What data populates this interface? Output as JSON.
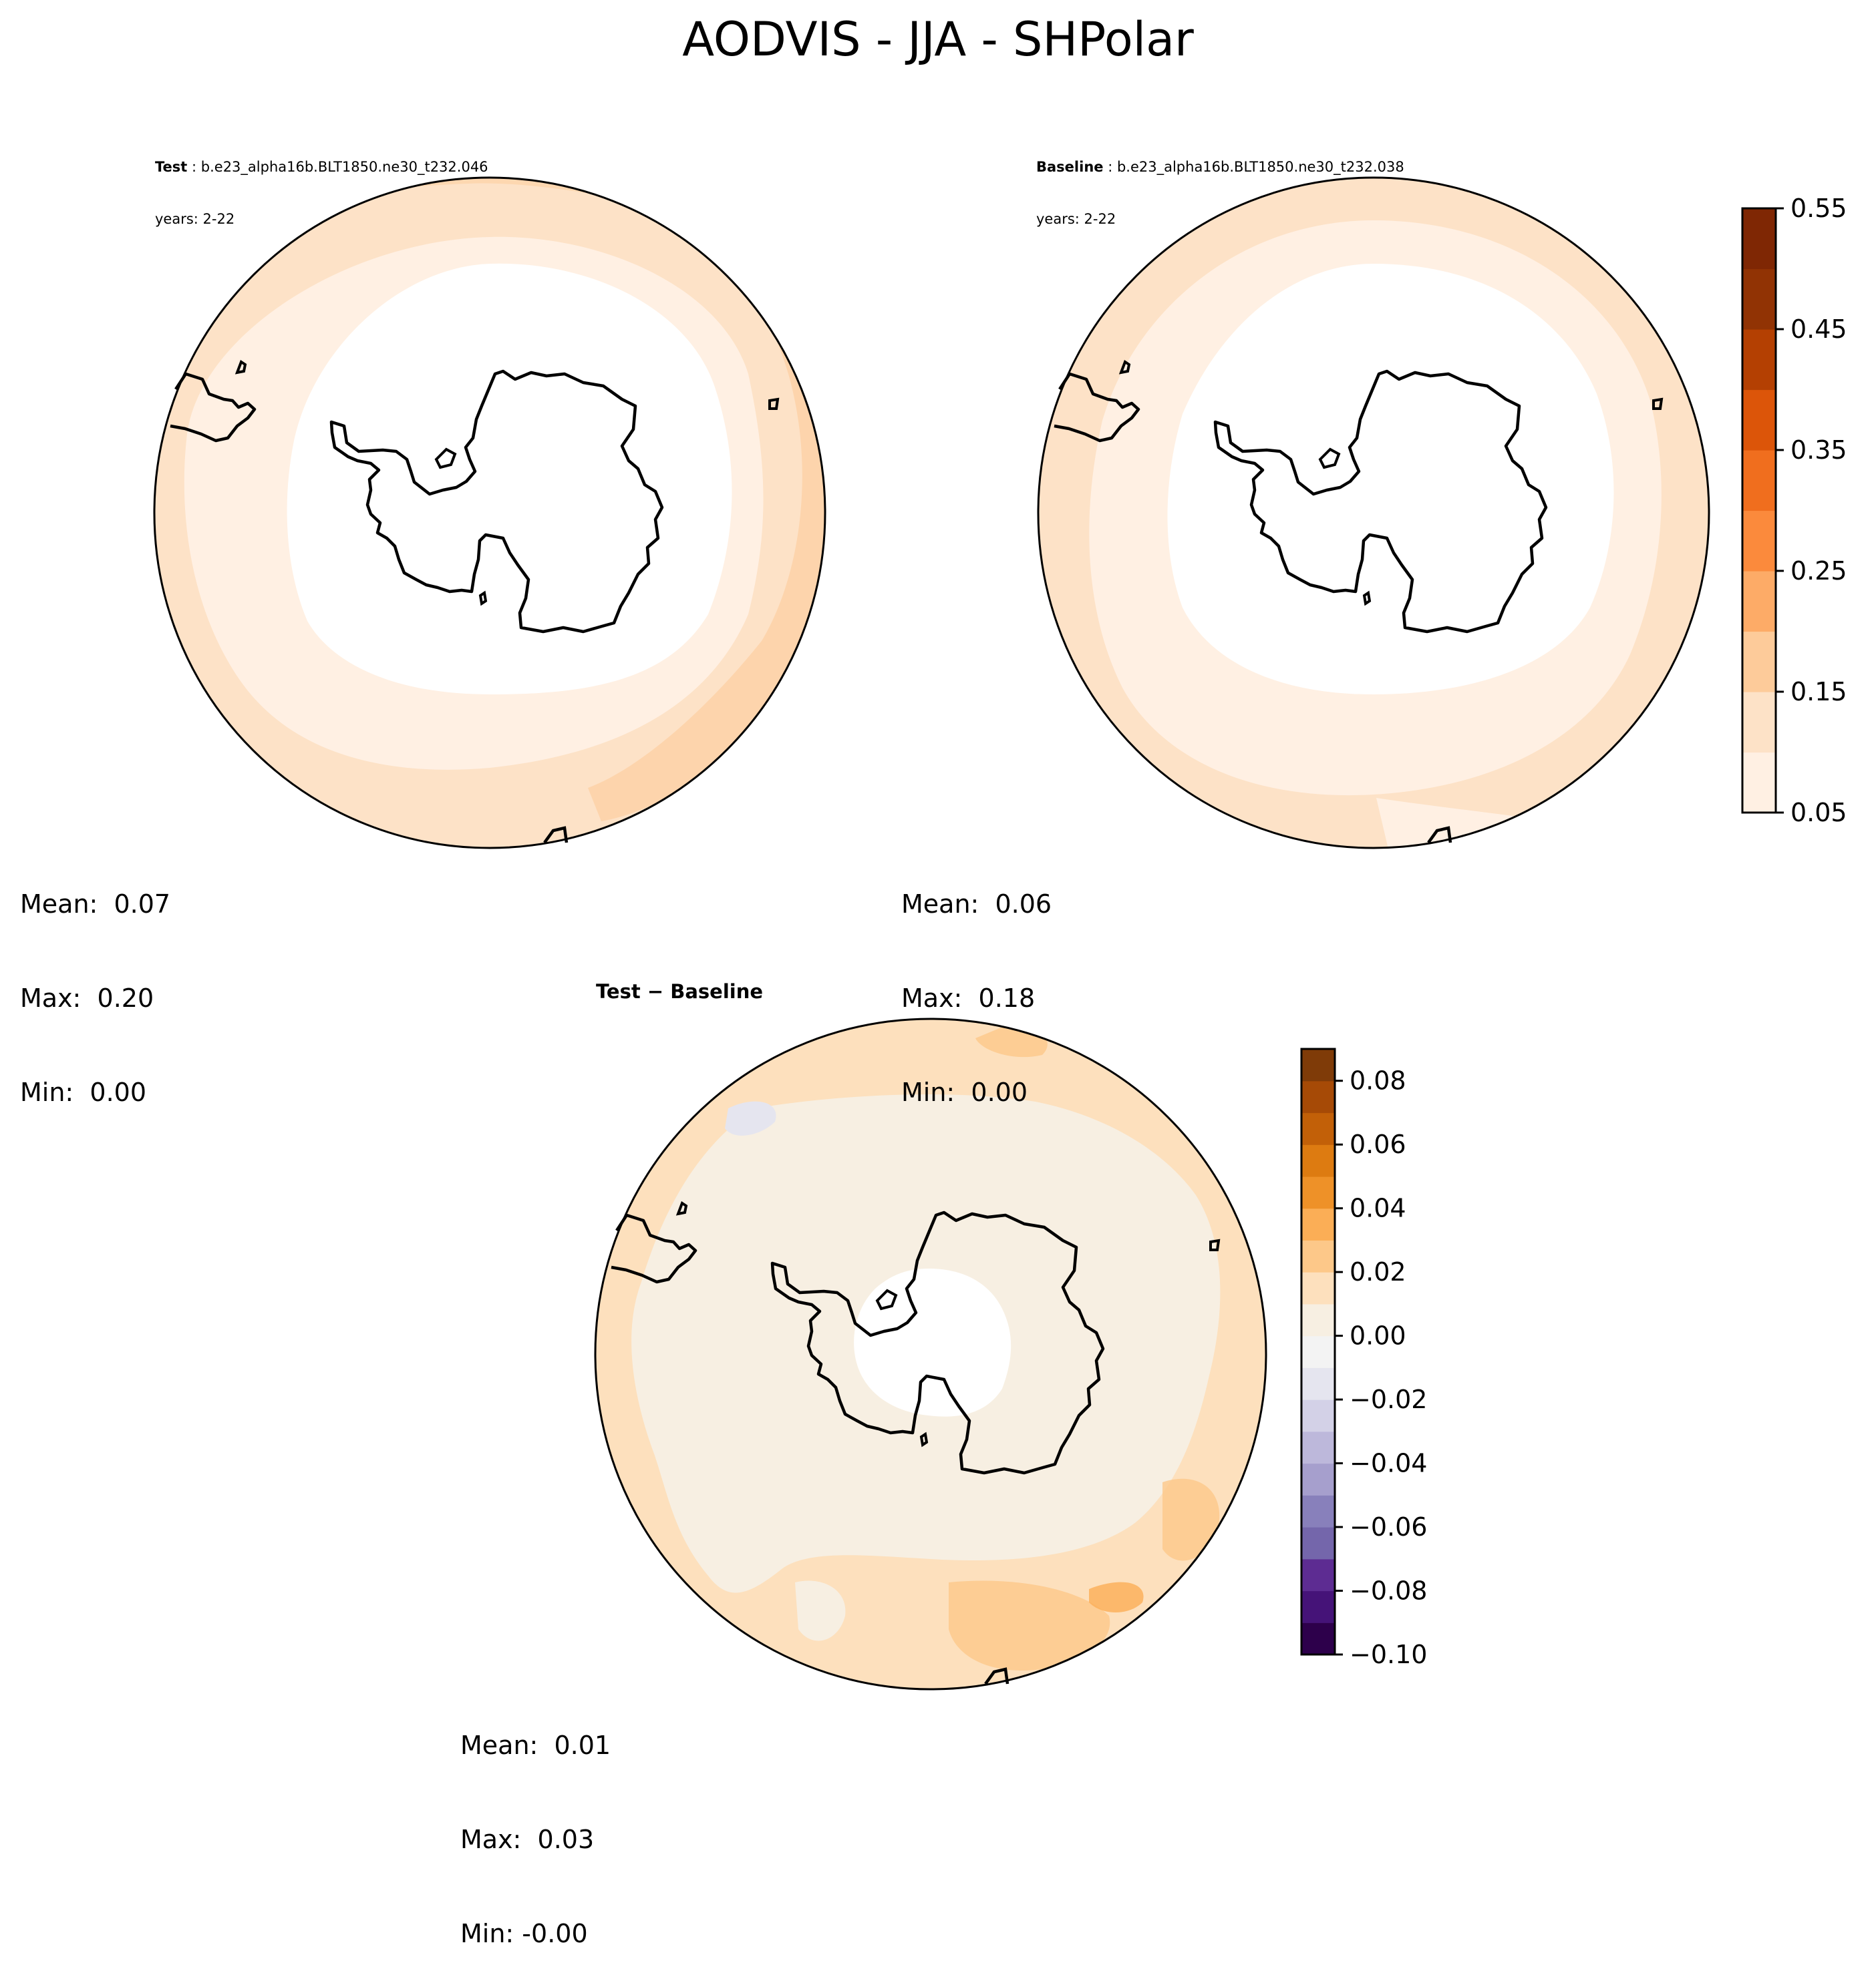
{
  "figure_title": "AODVIS - JJA - SHPolar",
  "colors": {
    "seq": [
      "#fff0e3",
      "#fde2c7",
      "#fdcb9a",
      "#fdab67",
      "#fb8a3c",
      "#f06e1e",
      "#dc5509",
      "#b44002",
      "#913304",
      "#7f2704"
    ],
    "div": [
      "#2d004b",
      "#451378",
      "#5d2c92",
      "#7466ab",
      "#8880bb",
      "#a69fcd",
      "#bdb8db",
      "#d3d1e7",
      "#e5e5ef",
      "#f3f3f3",
      "#f7efe2",
      "#fde0bd",
      "#fdc889",
      "#fbae56",
      "#ee9128",
      "#dd7b11",
      "#c26008",
      "#a64a06",
      "#7f3b08"
    ],
    "coast": "#000000"
  },
  "chart_data": [
    {
      "type": "heatmap",
      "projection": "south-polar-stereographic",
      "title_label": "Test",
      "title_case": "b.e23_alpha16b.BLT1850.ne30_t232.046",
      "title_years": "years: 2-22",
      "stats": {
        "mean": "Mean:  0.07",
        "max": "Max:  0.20",
        "min": "Min:  0.00"
      },
      "field_bands": [
        0.05,
        0.1,
        0.15
      ],
      "colorbar": "shared-sequential"
    },
    {
      "type": "heatmap",
      "projection": "south-polar-stereographic",
      "title_label": "Baseline",
      "title_case": "b.e23_alpha16b.BLT1850.ne30_t232.038",
      "title_years": "years: 2-22",
      "stats": {
        "mean": "Mean:  0.06",
        "max": "Max:  0.18",
        "min": "Min:  0.00"
      },
      "field_bands": [
        0.05,
        0.1,
        0.15
      ],
      "colorbar": "shared-sequential"
    },
    {
      "type": "heatmap",
      "projection": "south-polar-stereographic",
      "title": "Test − Baseline",
      "stats": {
        "mean": "Mean:  0.01",
        "max": "Max:  0.03",
        "min": "Min: -0.00"
      },
      "field_bands": [
        -0.01,
        0.0,
        0.01,
        0.02
      ],
      "colorbar": "diverging"
    }
  ],
  "colorbars": {
    "sequential": {
      "levels": [
        0.05,
        0.1,
        0.15,
        0.2,
        0.25,
        0.3,
        0.35,
        0.4,
        0.45,
        0.5,
        0.55
      ],
      "ticks": [
        "0.05",
        "0.15",
        "0.25",
        "0.35",
        "0.45",
        "0.55"
      ]
    },
    "diverging": {
      "levels": [
        -0.1,
        -0.09,
        -0.08,
        -0.07,
        -0.06,
        -0.05,
        -0.04,
        -0.03,
        -0.02,
        -0.01,
        0.0,
        0.01,
        0.02,
        0.03,
        0.04,
        0.05,
        0.06,
        0.07,
        0.08,
        0.09
      ],
      "ticks": [
        "0.08",
        "0.06",
        "0.04",
        "0.02",
        "0.00",
        "−0.02",
        "−0.04",
        "−0.06",
        "−0.08",
        "−0.10"
      ]
    }
  }
}
